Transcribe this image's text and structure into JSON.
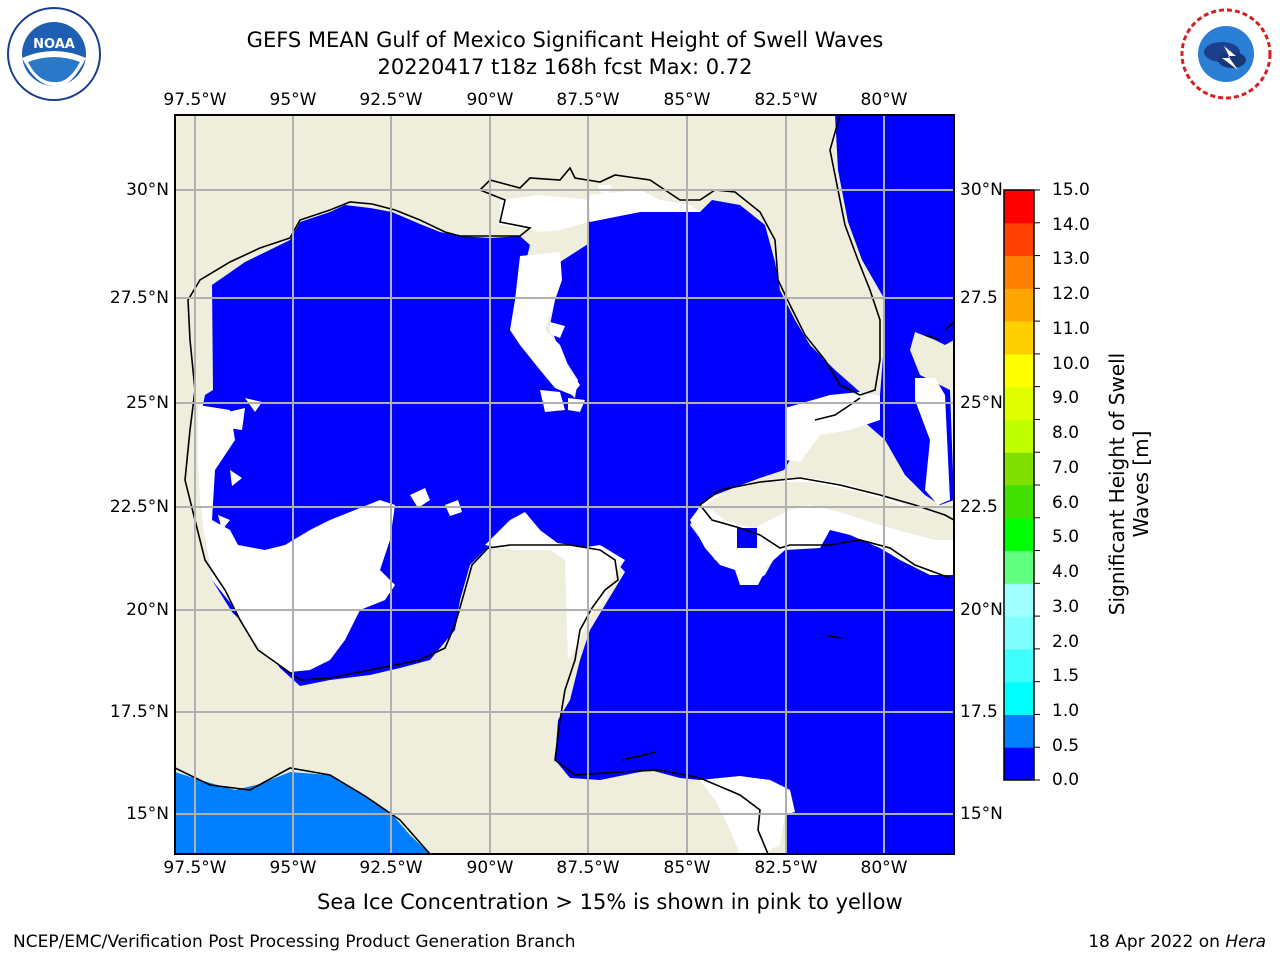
{
  "header": {
    "title_line1": "GEFS MEAN Gulf of Mexico Significant Height of Swell Waves",
    "title_line2": "20220417 t18z 168h fcst   Max: 0.72"
  },
  "logos": {
    "left": "noaa-logo",
    "right": "nws-logo"
  },
  "map": {
    "lon_ticks": [
      "97.5°W",
      "95°W",
      "92.5°W",
      "90°W",
      "87.5°W",
      "85°W",
      "82.5°W",
      "80°W"
    ],
    "lat_ticks_left": [
      "30°N",
      "27.5°N",
      "25°N",
      "22.5°N",
      "20°N",
      "17.5°N",
      "15°N"
    ],
    "lat_ticks_right": [
      "30°N",
      "27.5",
      "25°N",
      "22.5",
      "20°N",
      "17.5",
      "15°N"
    ],
    "colors": {
      "land": "#efeedc",
      "sea_low": "#0000ff",
      "sea_mid": "#0080ff",
      "grid": "#b0b0b0",
      "coast": "#000000"
    }
  },
  "colorbar": {
    "title": "Significant Height of Swell Waves [m]",
    "labels": [
      "15.0",
      "14.0",
      "13.0",
      "12.0",
      "11.0",
      "10.0",
      "9.0",
      "8.0",
      "7.0",
      "6.0",
      "5.0",
      "4.0",
      "3.0",
      "2.0",
      "1.5",
      "1.0",
      "0.5",
      "0.0"
    ],
    "colors": [
      "#0000ff",
      "#0080ff",
      "#00ffff",
      "#40ffff",
      "#80ffff",
      "#a0ffff",
      "#60ff80",
      "#00ff00",
      "#40e000",
      "#80e000",
      "#c0ff00",
      "#e0ff00",
      "#ffff00",
      "#ffd000",
      "#ffa500",
      "#ff8000",
      "#ff4000",
      "#ff0000"
    ]
  },
  "footer": {
    "note": "Sea Ice Concentration > 15% is shown in pink to yellow",
    "credit": "NCEP/EMC/Verification Post Processing Product Generation Branch",
    "date": "18 Apr 2022 on",
    "machine": "Hera"
  }
}
